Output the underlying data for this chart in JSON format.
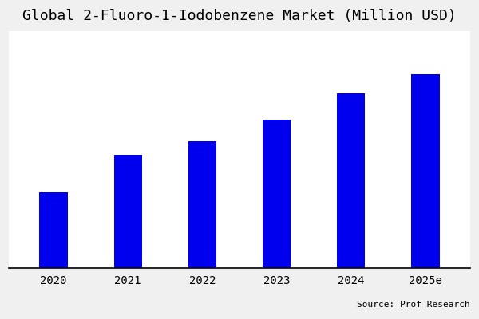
{
  "title": "Global 2-Fluoro-1-Iodobenzene Market (Million USD)",
  "categories": [
    "2020",
    "2021",
    "2022",
    "2023",
    "2024",
    "2025e"
  ],
  "values": [
    28,
    42,
    47,
    55,
    65,
    72
  ],
  "bar_color": "#0000EE",
  "background_color": "#f0f0f0",
  "plot_background": "#ffffff",
  "title_fontsize": 13,
  "source_text": "Source: Prof Research",
  "ylim": [
    0,
    88
  ],
  "bar_width": 0.38
}
